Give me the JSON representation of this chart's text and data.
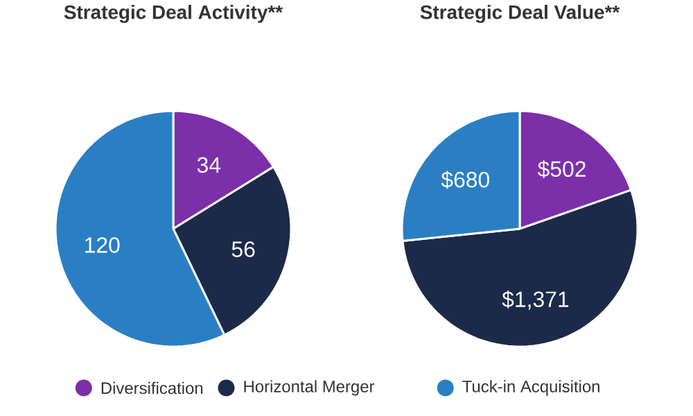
{
  "chart_data": [
    {
      "type": "pie",
      "title": "Strategic Deal Activity**",
      "categories": [
        "Diversification",
        "Horizontal Merger",
        "Tuck-in Acquisition"
      ],
      "values": [
        34,
        56,
        120
      ],
      "colors": [
        "#7b2fa8",
        "#1c2a4a",
        "#2a7fc4"
      ],
      "data_labels": true,
      "legend": "bottom"
    },
    {
      "type": "pie",
      "title": "Strategic Deal Value**",
      "categories": [
        null,
        null,
        null
      ],
      "values": [
        502,
        1371,
        680
      ],
      "value_labels": [
        "$502",
        "$1,371",
        "$680"
      ],
      "colors": [
        "#7b2fa8",
        "#1c2a4a",
        "#2a7fc4"
      ]
    }
  ]
}
